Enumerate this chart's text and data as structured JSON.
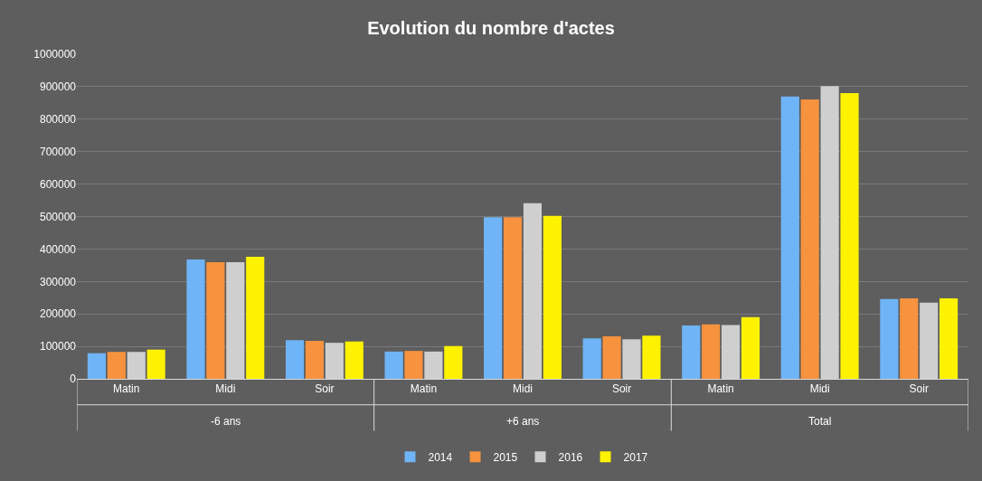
{
  "chart_data": {
    "type": "bar",
    "title": "Evolution du nombre d'actes",
    "categories": [
      "Matin",
      "Midi",
      "Soir",
      "Matin",
      "Midi",
      "Soir",
      "Matin",
      "Midi",
      "Soir"
    ],
    "annotations": [
      "-6 ans",
      "+6 ans",
      "Total"
    ],
    "series": [
      {
        "name": "2014",
        "color": "#6fb4f7",
        "values": [
          79000,
          368000,
          119000,
          84000,
          498000,
          125000,
          164000,
          870000,
          246000
        ]
      },
      {
        "name": "2015",
        "color": "#f7923e",
        "values": [
          83000,
          359000,
          117000,
          86000,
          498000,
          131000,
          168000,
          861000,
          248000
        ]
      },
      {
        "name": "2016",
        "color": "#cfcfcf",
        "values": [
          83000,
          359000,
          111000,
          84000,
          541000,
          122000,
          166000,
          902000,
          235000
        ]
      },
      {
        "name": "2017",
        "color": "#fff200",
        "values": [
          90000,
          376000,
          115000,
          101000,
          502000,
          133000,
          190000,
          880000,
          248000
        ]
      }
    ],
    "ylim": [
      0,
      1000000
    ],
    "yticks": [
      0,
      100000,
      200000,
      300000,
      400000,
      500000,
      600000,
      700000,
      800000,
      900000,
      1000000
    ],
    "grid": "y",
    "legend": "bottom"
  }
}
